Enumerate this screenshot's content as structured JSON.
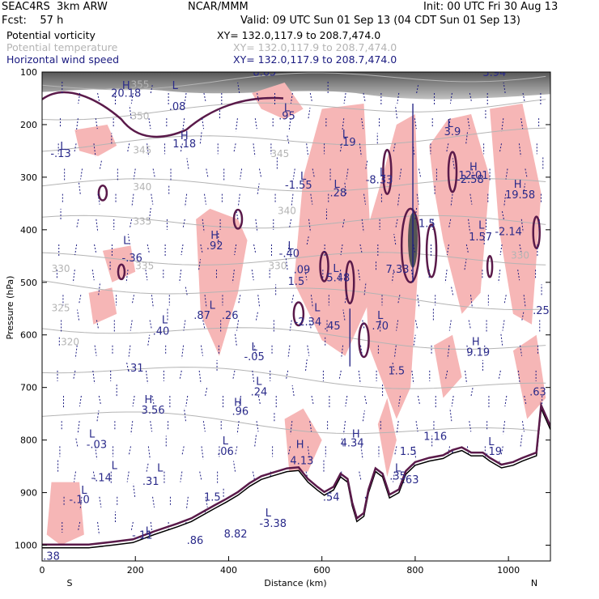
{
  "header": {
    "model": "SEAC4RS  3km ARW",
    "org": "NCAR/MMM",
    "init": "Init: 00 UTC Fri 30 Aug 13",
    "fcst": "Fcst:    57 h",
    "valid": "Valid: 09 UTC Sun 01 Sep 13 (04 CDT Sun 01 Sep 13)"
  },
  "legend": [
    {
      "name": "Potential vorticity",
      "xy": "XY= 132.0,117.9 to 208.7,474.0",
      "color": "#000000"
    },
    {
      "name": "Potential temperature",
      "xy": "XY= 132.0,117.9 to 208.7,474.0",
      "color": "#b4b4b4"
    },
    {
      "name": "Horizontal wind speed",
      "xy": "XY= 132.0,117.9 to 208.7,474.0",
      "color": "#1a1a80"
    }
  ],
  "colors": {
    "pv_fill": "#f6b6b6",
    "pv_contour": "#5a1a4a",
    "theta": "#b4b4b4",
    "wind": "#1a1a80",
    "terrain": "#000000",
    "speed_shade": "#555555"
  },
  "chart_data": {
    "type": "cross-section",
    "xlabel": "Distance (km)",
    "ylabel": "Pressure (hPa)",
    "xlim": [
      0,
      1090
    ],
    "ylim": [
      1030,
      100
    ],
    "x_ticks": [
      0,
      200,
      400,
      600,
      800,
      1000
    ],
    "x_tick_labels": [
      "0",
      "200",
      "400",
      "600",
      "800",
      "1000"
    ],
    "y_ticks": [
      100,
      200,
      300,
      400,
      500,
      600,
      700,
      800,
      900,
      1000
    ],
    "y_tick_labels": [
      "100",
      "200",
      "300",
      "400",
      "500",
      "600",
      "700",
      "800",
      "900",
      "1000"
    ],
    "endpoints": {
      "left": "S",
      "right": "N"
    },
    "theta_labels": [
      {
        "x": 210,
        "p": 130,
        "text": "355"
      },
      {
        "x": 210,
        "p": 190,
        "text": "350"
      },
      {
        "x": 215,
        "p": 255,
        "text": "345"
      },
      {
        "x": 215,
        "p": 325,
        "text": "340"
      },
      {
        "x": 215,
        "p": 390,
        "text": "335"
      },
      {
        "x": 40,
        "p": 480,
        "text": "330"
      },
      {
        "x": 220,
        "p": 475,
        "text": "335"
      },
      {
        "x": 505,
        "p": 475,
        "text": "330"
      },
      {
        "x": 40,
        "p": 555,
        "text": "325"
      },
      {
        "x": 60,
        "p": 620,
        "text": "320"
      },
      {
        "x": 510,
        "p": 262,
        "text": "345"
      },
      {
        "x": 525,
        "p": 370,
        "text": "340"
      },
      {
        "x": 1025,
        "p": 455,
        "text": "330"
      }
    ],
    "extrema": [
      {
        "x": 180,
        "p": 132,
        "text": "H"
      },
      {
        "x": 180,
        "p": 147,
        "text": "20.18"
      },
      {
        "x": 285,
        "p": 132,
        "text": "L"
      },
      {
        "x": 290,
        "p": 172,
        "text": ".08"
      },
      {
        "x": 305,
        "p": 228,
        "text": "H"
      },
      {
        "x": 305,
        "p": 243,
        "text": "1.18"
      },
      {
        "x": 45,
        "p": 248,
        "text": "L"
      },
      {
        "x": 40,
        "p": 262,
        "text": "-.13"
      },
      {
        "x": 525,
        "p": 175,
        "text": "L"
      },
      {
        "x": 525,
        "p": 190,
        "text": ".95"
      },
      {
        "x": 650,
        "p": 225,
        "text": "L"
      },
      {
        "x": 655,
        "p": 240,
        "text": ".19"
      },
      {
        "x": 875,
        "p": 205,
        "text": "L"
      },
      {
        "x": 880,
        "p": 220,
        "text": "3.9"
      },
      {
        "x": 560,
        "p": 305,
        "text": "L"
      },
      {
        "x": 550,
        "p": 322,
        "text": "-1.55"
      },
      {
        "x": 632,
        "p": 320,
        "text": "L"
      },
      {
        "x": 635,
        "p": 336,
        "text": ".28"
      },
      {
        "x": 730,
        "p": 297,
        "text": "L"
      },
      {
        "x": 723,
        "p": 312,
        "text": "-8.33"
      },
      {
        "x": 925,
        "p": 287,
        "text": "H"
      },
      {
        "x": 925,
        "p": 303,
        "text": "12.01"
      },
      {
        "x": 918,
        "p": 311,
        "text": "-2.58"
      },
      {
        "x": 1020,
        "p": 320,
        "text": "H"
      },
      {
        "x": 1025,
        "p": 340,
        "text": "19.58"
      },
      {
        "x": 825,
        "p": 395,
        "text": "1.5"
      },
      {
        "x": 942,
        "p": 398,
        "text": "L"
      },
      {
        "x": 940,
        "p": 420,
        "text": "1.57"
      },
      {
        "x": 1000,
        "p": 410,
        "text": "-2.14"
      },
      {
        "x": 180,
        "p": 427,
        "text": "L"
      },
      {
        "x": 193,
        "p": 460,
        "text": "-.36"
      },
      {
        "x": 370,
        "p": 417,
        "text": "H"
      },
      {
        "x": 370,
        "p": 437,
        "text": ".92"
      },
      {
        "x": 533,
        "p": 437,
        "text": "L"
      },
      {
        "x": 530,
        "p": 452,
        "text": "-.40"
      },
      {
        "x": 557,
        "p": 483,
        "text": ".09"
      },
      {
        "x": 545,
        "p": 505,
        "text": "1.5"
      },
      {
        "x": 630,
        "p": 480,
        "text": "L"
      },
      {
        "x": 635,
        "p": 498,
        "text": "5.48"
      },
      {
        "x": 762,
        "p": 482,
        "text": "7.33"
      },
      {
        "x": 365,
        "p": 550,
        "text": "L"
      },
      {
        "x": 343,
        "p": 570,
        "text": ".87"
      },
      {
        "x": 403,
        "p": 570,
        "text": ".26"
      },
      {
        "x": 263,
        "p": 578,
        "text": "L"
      },
      {
        "x": 255,
        "p": 600,
        "text": ".40"
      },
      {
        "x": 590,
        "p": 555,
        "text": "L"
      },
      {
        "x": 570,
        "p": 582,
        "text": "-2.34"
      },
      {
        "x": 622,
        "p": 590,
        "text": ".45"
      },
      {
        "x": 725,
        "p": 570,
        "text": "L"
      },
      {
        "x": 725,
        "p": 590,
        "text": ".70"
      },
      {
        "x": 1070,
        "p": 560,
        "text": ".25"
      },
      {
        "x": 455,
        "p": 630,
        "text": "L"
      },
      {
        "x": 455,
        "p": 648,
        "text": "-.05"
      },
      {
        "x": 930,
        "p": 620,
        "text": "H"
      },
      {
        "x": 935,
        "p": 640,
        "text": "9.19"
      },
      {
        "x": 200,
        "p": 670,
        "text": ".31"
      },
      {
        "x": 760,
        "p": 675,
        "text": "1.5"
      },
      {
        "x": 465,
        "p": 695,
        "text": "L"
      },
      {
        "x": 465,
        "p": 715,
        "text": ".24"
      },
      {
        "x": 228,
        "p": 730,
        "text": "H"
      },
      {
        "x": 238,
        "p": 750,
        "text": "3.56"
      },
      {
        "x": 420,
        "p": 735,
        "text": "H"
      },
      {
        "x": 425,
        "p": 752,
        "text": ".96"
      },
      {
        "x": 1063,
        "p": 715,
        "text": ".63"
      },
      {
        "x": 107,
        "p": 795,
        "text": "L"
      },
      {
        "x": 117,
        "p": 815,
        "text": "-.03"
      },
      {
        "x": 393,
        "p": 808,
        "text": "L"
      },
      {
        "x": 393,
        "p": 828,
        "text": ".06"
      },
      {
        "x": 673,
        "p": 795,
        "text": "H"
      },
      {
        "x": 665,
        "p": 812,
        "text": "4.34"
      },
      {
        "x": 553,
        "p": 815,
        "text": "H"
      },
      {
        "x": 557,
        "p": 846,
        "text": "4.13"
      },
      {
        "x": 843,
        "p": 800,
        "text": "1.16"
      },
      {
        "x": 963,
        "p": 810,
        "text": "L"
      },
      {
        "x": 968,
        "p": 828,
        "text": ".19"
      },
      {
        "x": 785,
        "p": 828,
        "text": "1.5"
      },
      {
        "x": 155,
        "p": 855,
        "text": "L"
      },
      {
        "x": 127,
        "p": 878,
        "text": "-.14"
      },
      {
        "x": 253,
        "p": 860,
        "text": "L"
      },
      {
        "x": 233,
        "p": 885,
        "text": ".31"
      },
      {
        "x": 763,
        "p": 860,
        "text": "L"
      },
      {
        "x": 763,
        "p": 875,
        "text": ".35"
      },
      {
        "x": 790,
        "p": 882,
        "text": ".63"
      },
      {
        "x": 90,
        "p": 902,
        "text": "L"
      },
      {
        "x": 80,
        "p": 920,
        "text": "-.10"
      },
      {
        "x": 365,
        "p": 915,
        "text": "1.5"
      },
      {
        "x": 620,
        "p": 915,
        "text": ".54"
      },
      {
        "x": 485,
        "p": 945,
        "text": "L"
      },
      {
        "x": 495,
        "p": 965,
        "text": "-3.38"
      },
      {
        "x": 228,
        "p": 980,
        "text": "L"
      },
      {
        "x": 215,
        "p": 988,
        "text": "-.11"
      },
      {
        "x": 328,
        "p": 998,
        "text": ".86"
      },
      {
        "x": 415,
        "p": 985,
        "text": "8.82"
      },
      {
        "x": 20,
        "p": 1028,
        "text": ".38"
      },
      {
        "x": 477,
        "p": 107,
        "text": "8.65"
      },
      {
        "x": 970,
        "p": 108,
        "text": "3.94"
      }
    ],
    "terrain_surface": [
      [
        0,
        1005
      ],
      [
        100,
        1005
      ],
      [
        150,
        1000
      ],
      [
        195,
        995
      ],
      [
        240,
        980
      ],
      [
        290,
        965
      ],
      [
        320,
        955
      ],
      [
        370,
        930
      ],
      [
        395,
        918
      ],
      [
        420,
        905
      ],
      [
        445,
        888
      ],
      [
        470,
        875
      ],
      [
        495,
        868
      ],
      [
        525,
        860
      ],
      [
        550,
        858
      ],
      [
        570,
        880
      ],
      [
        590,
        895
      ],
      [
        605,
        905
      ],
      [
        625,
        895
      ],
      [
        640,
        870
      ],
      [
        655,
        880
      ],
      [
        665,
        925
      ],
      [
        675,
        955
      ],
      [
        690,
        945
      ],
      [
        700,
        900
      ],
      [
        715,
        860
      ],
      [
        730,
        870
      ],
      [
        745,
        910
      ],
      [
        765,
        900
      ],
      [
        780,
        865
      ],
      [
        800,
        848
      ],
      [
        830,
        840
      ],
      [
        860,
        835
      ],
      [
        880,
        825
      ],
      [
        900,
        820
      ],
      [
        920,
        830
      ],
      [
        945,
        830
      ],
      [
        960,
        840
      ],
      [
        985,
        853
      ],
      [
        1010,
        848
      ],
      [
        1030,
        840
      ],
      [
        1060,
        830
      ],
      [
        1070,
        740
      ],
      [
        1090,
        780
      ]
    ]
  }
}
